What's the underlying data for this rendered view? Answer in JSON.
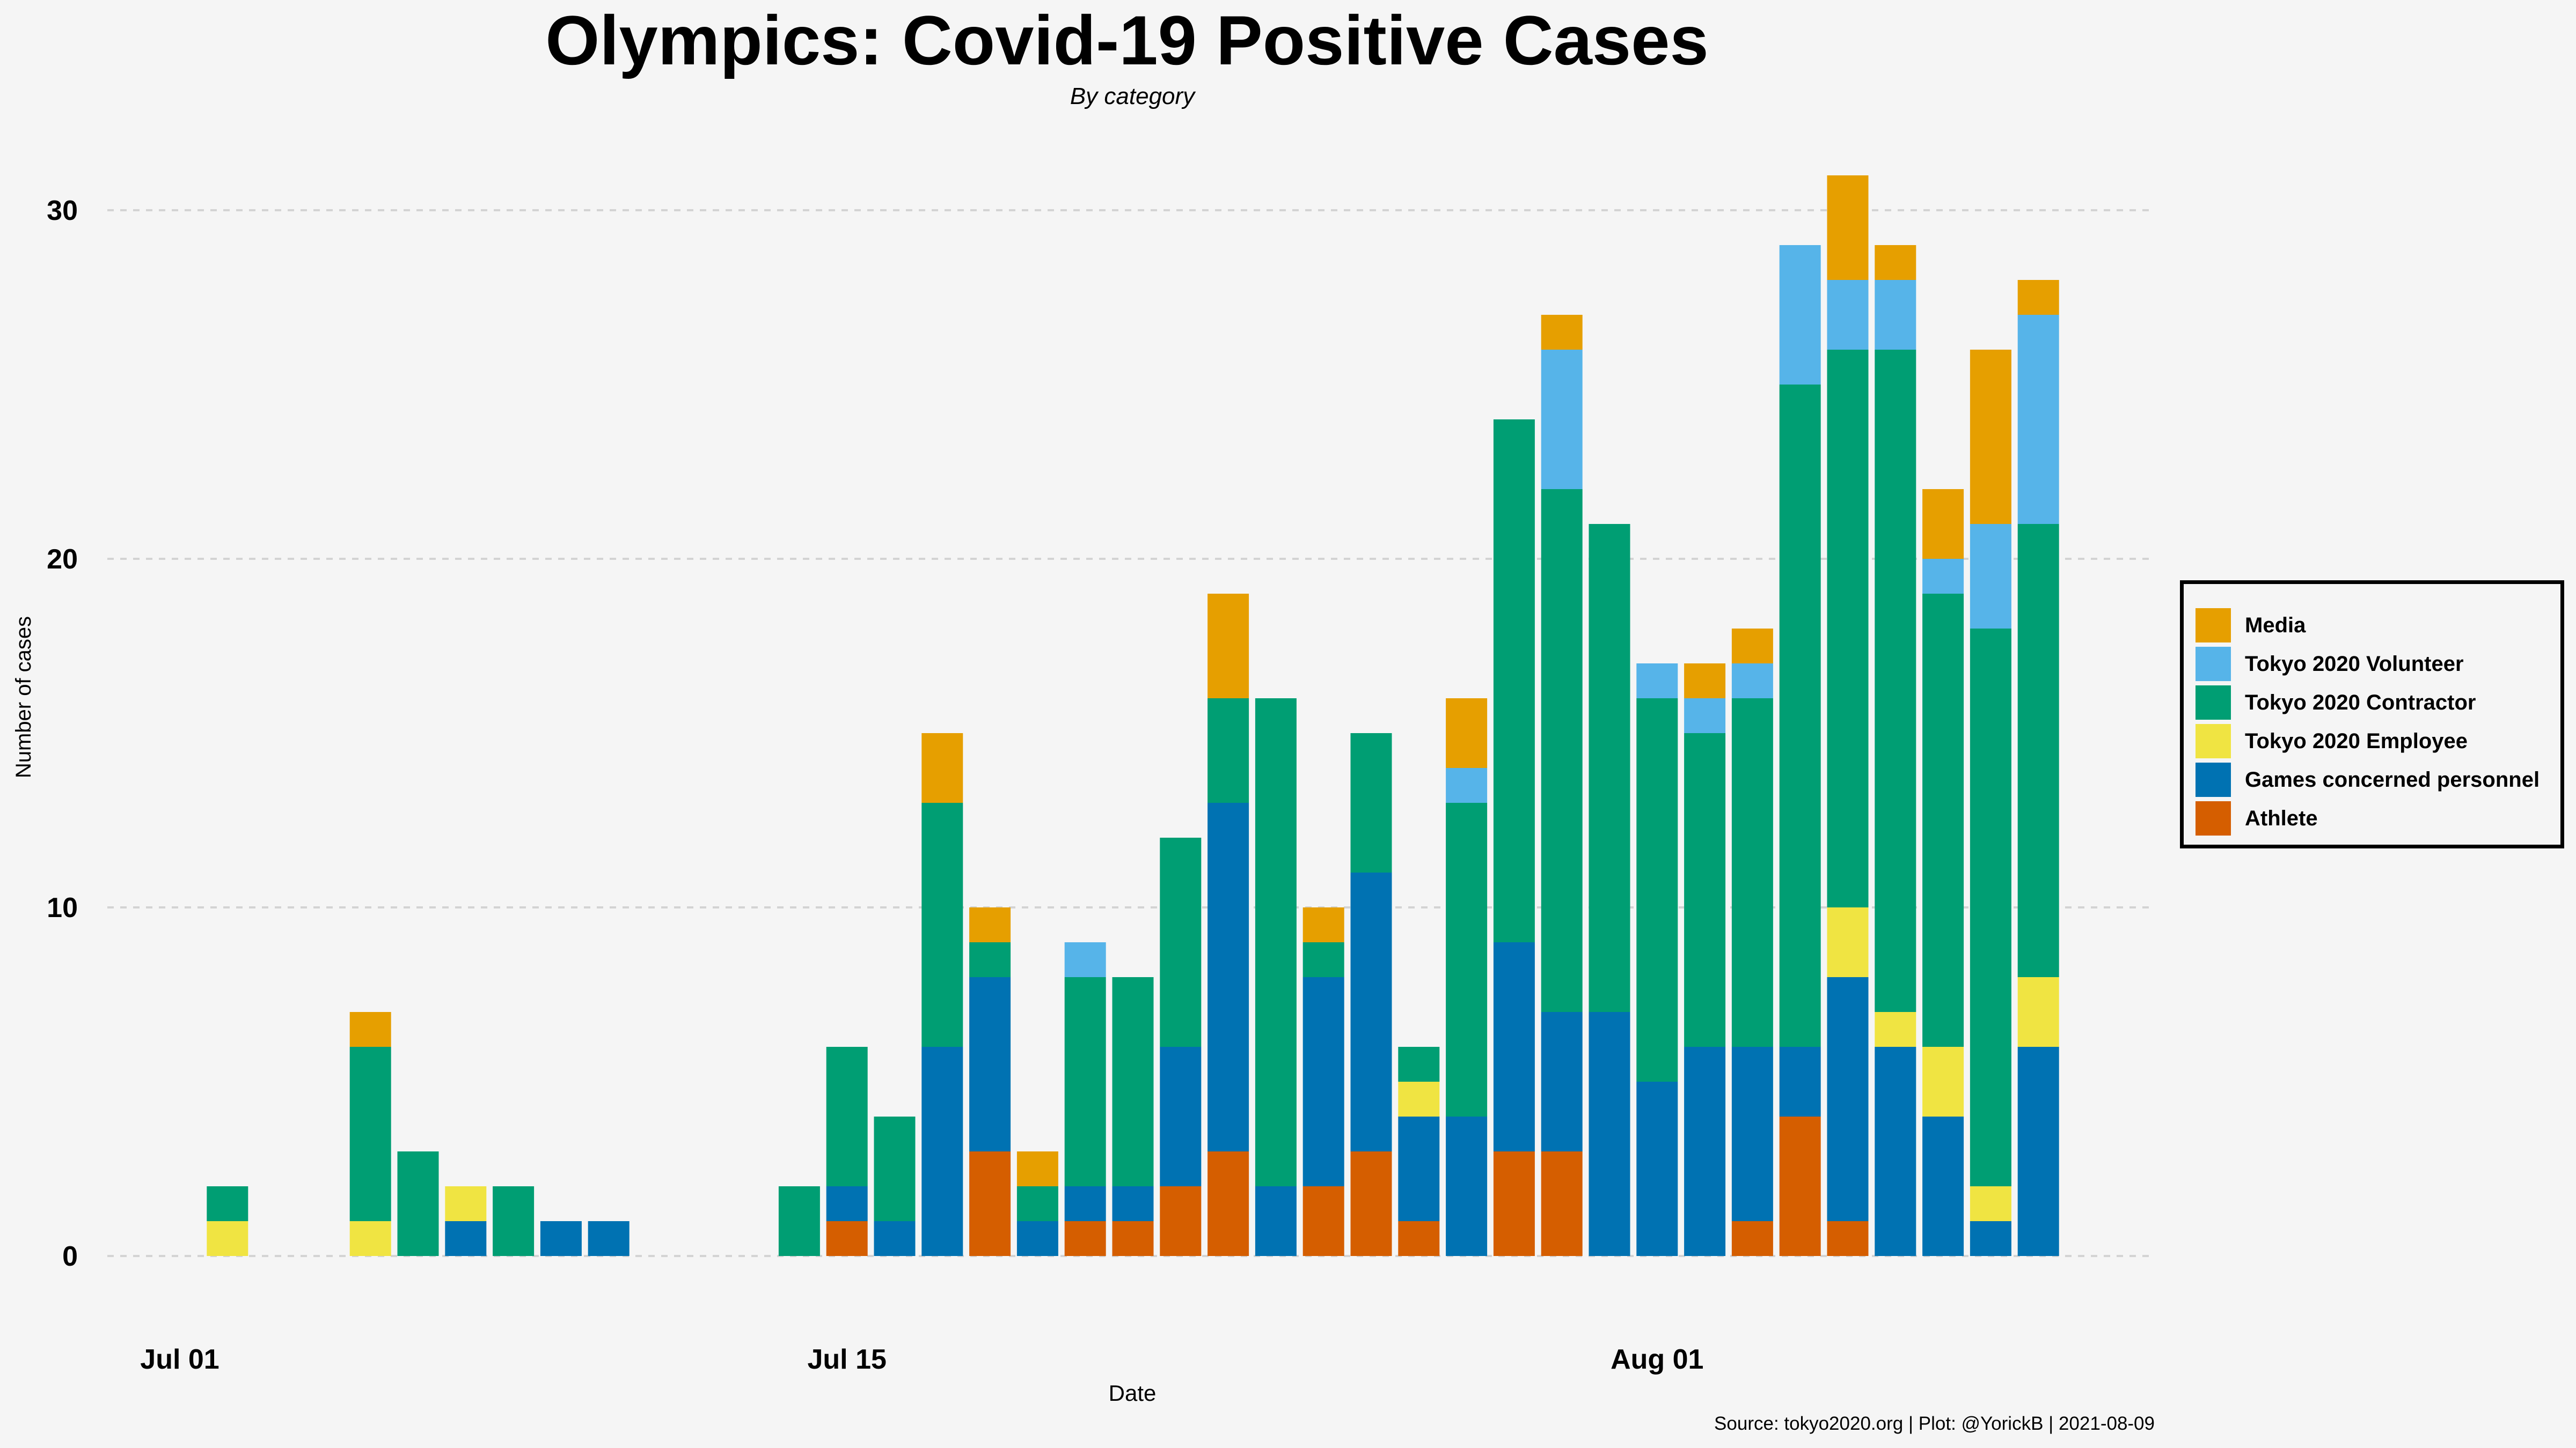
{
  "chart_data": {
    "type": "bar",
    "stacked": true,
    "title": "Olympics: Covid-19 Positive Cases",
    "subtitle": "By category",
    "xlabel": "Date",
    "ylabel": "Number of cases",
    "caption": "Source: tokyo2020.org | Plot: @YorickB |  2021-08-09",
    "ylim": [
      0,
      31
    ],
    "yticks": [
      0,
      10,
      20,
      30
    ],
    "xticks": [
      {
        "day_index": 0,
        "label": "Jul 01"
      },
      {
        "day_index": 14,
        "label": "Jul 15"
      },
      {
        "day_index": 31,
        "label": "Aug 01"
      }
    ],
    "grid": "horizontal-dashed",
    "legend_position": "right",
    "categories": [
      "Jul 01",
      "Jul 02",
      "Jul 03",
      "Jul 04",
      "Jul 05",
      "Jul 06",
      "Jul 07",
      "Jul 08",
      "Jul 09",
      "Jul 10",
      "Jul 11",
      "Jul 12",
      "Jul 13",
      "Jul 14",
      "Jul 15",
      "Jul 16",
      "Jul 17",
      "Jul 18",
      "Jul 19",
      "Jul 20",
      "Jul 21",
      "Jul 22",
      "Jul 23",
      "Jul 24",
      "Jul 25",
      "Jul 26",
      "Jul 27",
      "Jul 28",
      "Jul 29",
      "Jul 30",
      "Jul 31",
      "Aug 01",
      "Aug 02",
      "Aug 03",
      "Aug 04",
      "Aug 05",
      "Aug 06",
      "Aug 07",
      "Aug 08",
      "Aug 09"
    ],
    "series": [
      {
        "name": "Athlete",
        "color": "#D55E00",
        "values": [
          0,
          0,
          0,
          0,
          0,
          0,
          0,
          0,
          0,
          0,
          0,
          0,
          0,
          0,
          1,
          0,
          0,
          3,
          0,
          1,
          1,
          2,
          3,
          0,
          2,
          3,
          1,
          0,
          3,
          3,
          0,
          0,
          0,
          1,
          4,
          1,
          0,
          0,
          0,
          0
        ]
      },
      {
        "name": "Games concerned personnel",
        "color": "#0072B2",
        "values": [
          0,
          0,
          0,
          0,
          0,
          0,
          1,
          0,
          1,
          1,
          0,
          0,
          0,
          0,
          1,
          1,
          6,
          5,
          1,
          1,
          1,
          4,
          10,
          2,
          6,
          8,
          3,
          4,
          6,
          4,
          7,
          5,
          6,
          5,
          2,
          7,
          6,
          4,
          1,
          6
        ]
      },
      {
        "name": "Tokyo 2020 Employee",
        "color": "#F0E442",
        "values": [
          0,
          1,
          0,
          0,
          1,
          0,
          1,
          0,
          0,
          0,
          0,
          0,
          0,
          0,
          0,
          0,
          0,
          0,
          0,
          0,
          0,
          0,
          0,
          0,
          0,
          0,
          1,
          0,
          0,
          0,
          0,
          0,
          0,
          0,
          0,
          2,
          1,
          2,
          1,
          2
        ]
      },
      {
        "name": "Tokyo 2020 Contractor",
        "color": "#009E73",
        "values": [
          0,
          1,
          0,
          0,
          5,
          3,
          0,
          2,
          0,
          0,
          0,
          0,
          0,
          2,
          4,
          3,
          7,
          1,
          1,
          6,
          6,
          6,
          3,
          14,
          1,
          4,
          1,
          9,
          15,
          15,
          14,
          11,
          9,
          10,
          19,
          16,
          19,
          13,
          16,
          13
        ]
      },
      {
        "name": "Tokyo 2020 Volunteer",
        "color": "#56B4E9",
        "values": [
          0,
          0,
          0,
          0,
          0,
          0,
          0,
          0,
          0,
          0,
          0,
          0,
          0,
          0,
          0,
          0,
          0,
          0,
          0,
          1,
          0,
          0,
          0,
          0,
          0,
          0,
          0,
          1,
          0,
          4,
          0,
          1,
          1,
          1,
          4,
          2,
          2,
          1,
          3,
          6
        ]
      },
      {
        "name": "Media",
        "color": "#E69F00",
        "values": [
          0,
          0,
          0,
          0,
          1,
          0,
          0,
          0,
          0,
          0,
          0,
          0,
          0,
          0,
          0,
          0,
          2,
          1,
          1,
          0,
          0,
          0,
          3,
          0,
          1,
          0,
          0,
          2,
          0,
          1,
          0,
          0,
          1,
          1,
          0,
          3,
          1,
          2,
          5,
          1
        ]
      }
    ],
    "legend_order": [
      "Media",
      "Tokyo 2020 Volunteer",
      "Tokyo 2020 Contractor",
      "Tokyo 2020 Employee",
      "Games concerned personnel",
      "Athlete"
    ]
  },
  "colors": {
    "background": "#f5f5f5",
    "grid": "#d3d3d3",
    "text": "#000000"
  }
}
